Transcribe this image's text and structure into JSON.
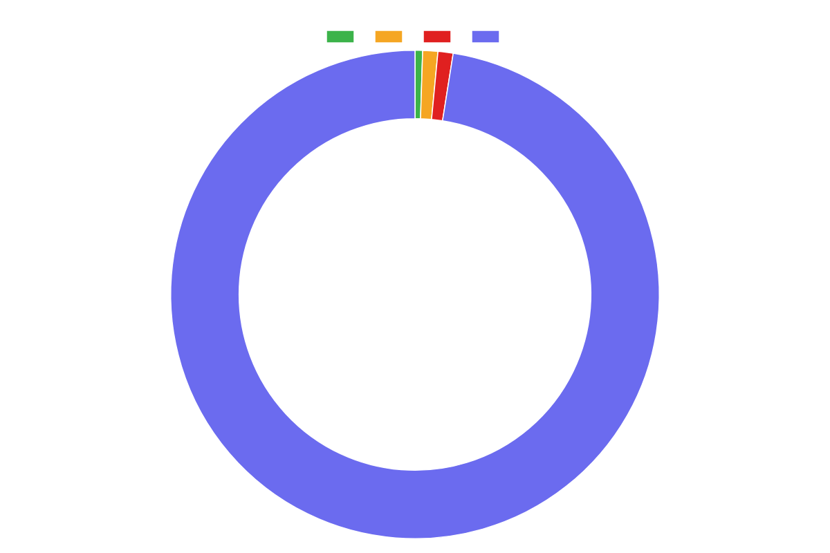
{
  "chart_data": {
    "type": "doughnut",
    "categories": [
      null,
      null,
      null,
      null
    ],
    "values": [
      0.5,
      1.0,
      1.0,
      97.5
    ],
    "colors": [
      "#3cb34a",
      "#f5a623",
      "#e02020",
      "#6b6bef"
    ],
    "legend": "top"
  }
}
